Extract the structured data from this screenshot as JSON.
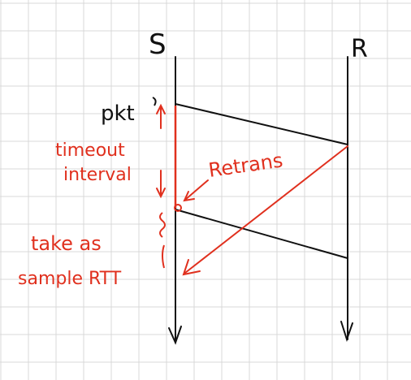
{
  "diagram": {
    "colors": {
      "grid": "#d9d9d9",
      "ink": "#111111",
      "accent": "#e0301e",
      "background": "#ffffff"
    },
    "sender_label": "S",
    "receiver_label": "R",
    "packet_label": "pkt",
    "timeout_label_line1": "timeout",
    "timeout_label_line2": "interval",
    "retrans_label": "Retrans",
    "sample_label_line1": "take as",
    "sample_label_line2": "sample RTT"
  }
}
